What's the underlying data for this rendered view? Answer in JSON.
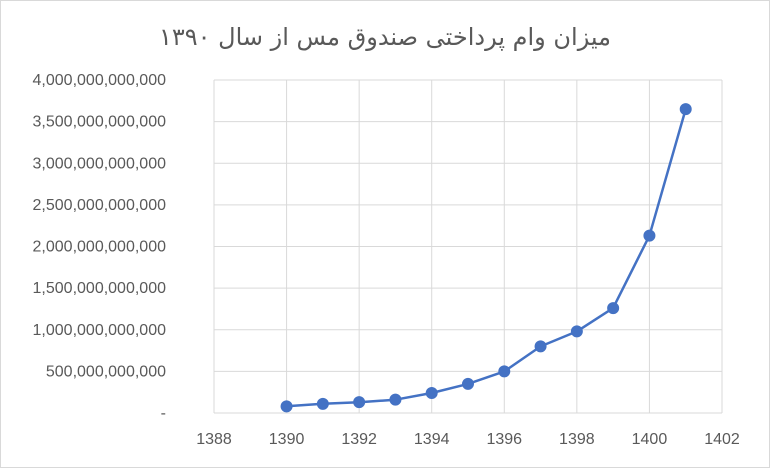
{
  "chart_data": {
    "type": "line",
    "title": "میزان وام پرداختی صندوق مس از سال ۱۳۹۰",
    "xlabel": "",
    "ylabel": "",
    "xlim": [
      1388,
      1402
    ],
    "ylim": [
      0,
      4000000000000
    ],
    "x_ticks": [
      1388,
      1390,
      1392,
      1394,
      1396,
      1398,
      1400,
      1402
    ],
    "y_ticks": [
      0,
      500000000000,
      1000000000000,
      1500000000000,
      2000000000000,
      2500000000000,
      3000000000000,
      3500000000000,
      4000000000000
    ],
    "y_tick_labels": [
      "-",
      "500,000,000,000",
      "1,000,000,000,000",
      "1,500,000,000,000",
      "2,000,000,000,000",
      "2,500,000,000,000",
      "3,000,000,000,000",
      "3,500,000,000,000",
      "4,000,000,000,000"
    ],
    "grid": "vertical-and-horizontal",
    "legend": "none",
    "series": [
      {
        "color": "#4472C4",
        "x": [
          1390,
          1391,
          1392,
          1393,
          1394,
          1395,
          1396,
          1397,
          1398,
          1399,
          1400,
          1401
        ],
        "values": [
          80000000000,
          110000000000,
          130000000000,
          160000000000,
          240000000000,
          350000000000,
          500000000000,
          800000000000,
          980000000000,
          1260000000000,
          2130000000000,
          3650000000000
        ]
      }
    ]
  }
}
